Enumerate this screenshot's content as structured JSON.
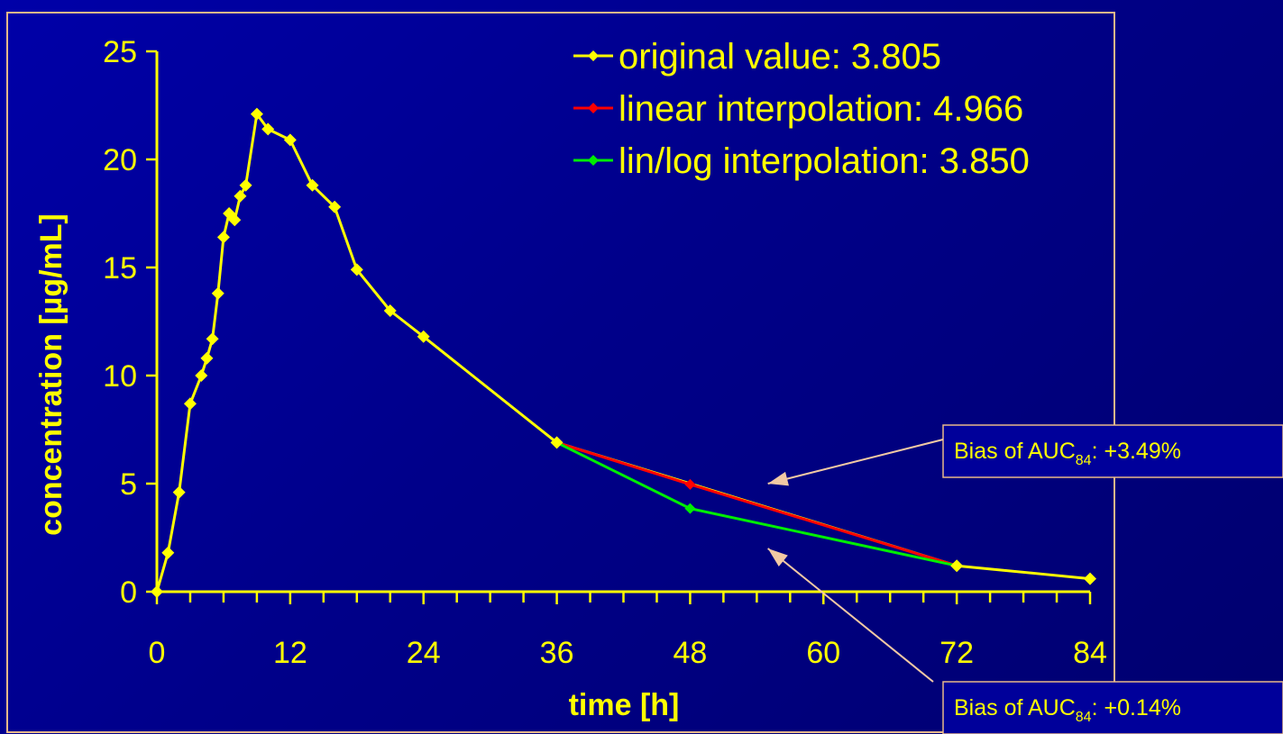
{
  "chart_data": {
    "type": "line",
    "xlabel": "time [h]",
    "ylabel": "concentration [µg/mL]",
    "xlim": [
      0,
      84
    ],
    "ylim": [
      0,
      25
    ],
    "xticks": [
      0,
      12,
      24,
      36,
      48,
      60,
      72,
      84
    ],
    "yticks": [
      0,
      5,
      10,
      15,
      20,
      25
    ],
    "legend_position": "top-right",
    "series": [
      {
        "name": "original value: 3.805",
        "color": "#ffff00",
        "marker": "diamond",
        "points": [
          [
            0,
            0
          ],
          [
            1,
            1.8
          ],
          [
            2,
            4.6
          ],
          [
            3,
            8.7
          ],
          [
            4,
            10
          ],
          [
            4.5,
            10.8
          ],
          [
            5,
            11.7
          ],
          [
            5.5,
            13.8
          ],
          [
            6,
            16.4
          ],
          [
            6.5,
            17.5
          ],
          [
            7,
            17.2
          ],
          [
            7.5,
            18.3
          ],
          [
            8,
            18.8
          ],
          [
            9,
            22.1
          ],
          [
            10,
            21.4
          ],
          [
            12,
            20.9
          ],
          [
            14,
            18.8
          ],
          [
            16,
            17.8
          ],
          [
            18,
            14.9
          ],
          [
            21,
            13
          ],
          [
            24,
            11.8
          ],
          [
            36,
            6.9
          ],
          [
            72,
            1.2
          ],
          [
            84,
            0.6
          ]
        ]
      },
      {
        "name": "linear interpolation: 4.966",
        "color": "#ff0000",
        "marker": "diamond",
        "points": [
          [
            36,
            6.9
          ],
          [
            48,
            4.966
          ],
          [
            72,
            1.2
          ]
        ]
      },
      {
        "name": "lin/log interpolation: 3.850",
        "color": "#00ee00",
        "marker": "diamond",
        "points": [
          [
            36,
            6.9
          ],
          [
            48,
            3.85
          ],
          [
            72,
            1.2
          ]
        ]
      }
    ],
    "annotations": [
      {
        "prefix": "Bias of AUC",
        "sub": "84",
        "suffix": ": +3.49%",
        "points_to": [
          55,
          5
        ]
      },
      {
        "prefix": "Bias of AUC",
        "sub": "84",
        "suffix": ": +0.14%",
        "points_to": [
          55,
          2
        ]
      }
    ]
  }
}
